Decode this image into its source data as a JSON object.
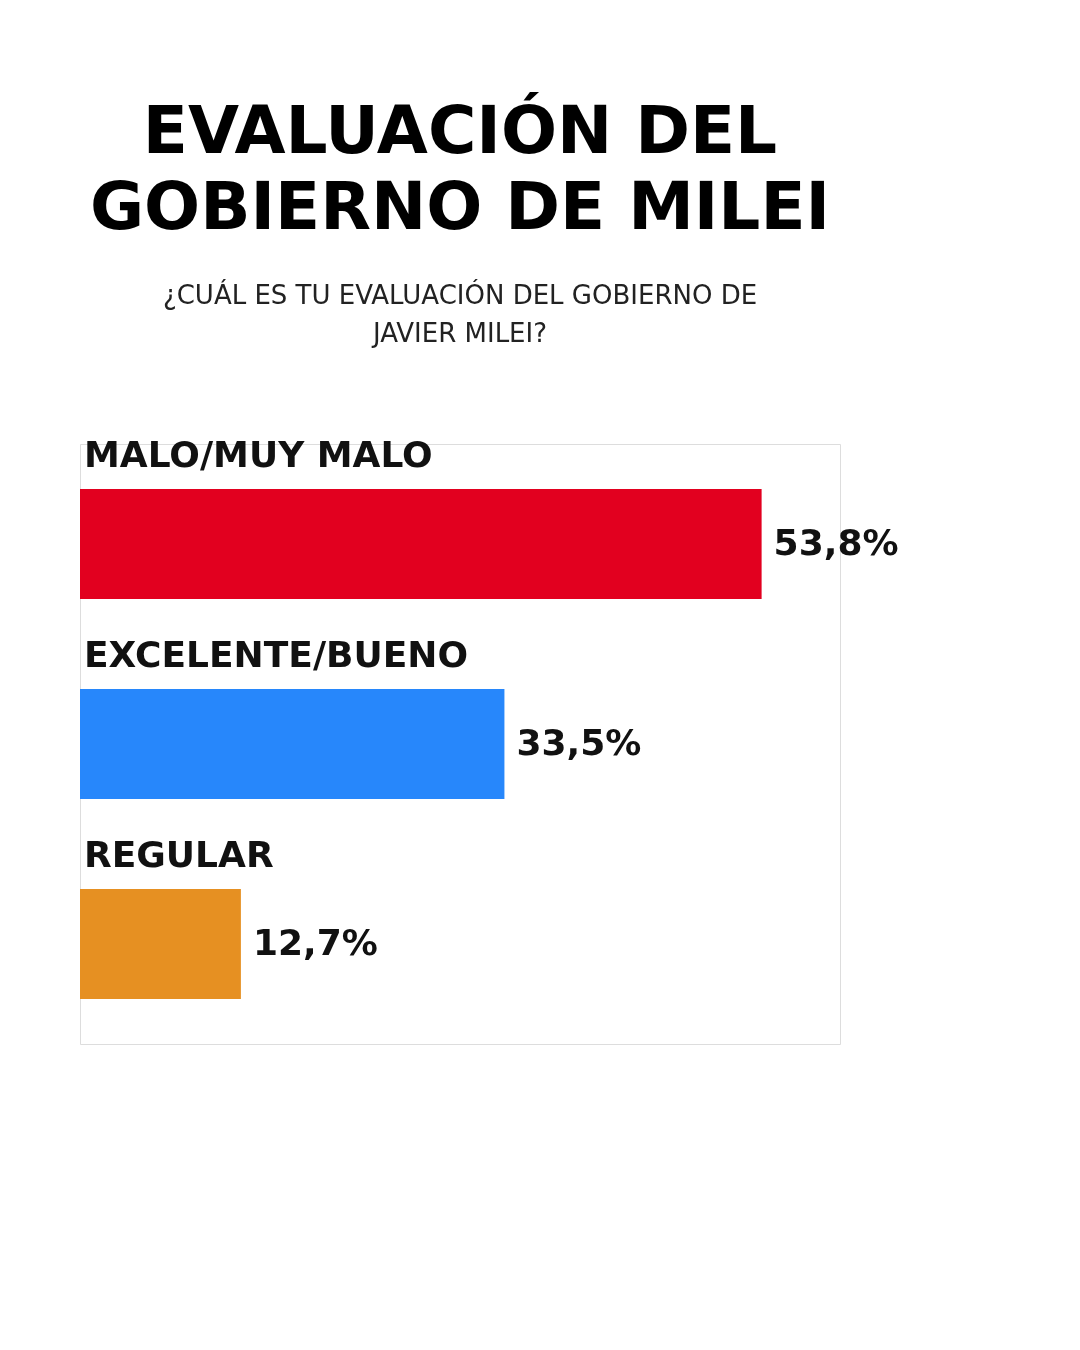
{
  "chart_data": {
    "type": "bar",
    "orientation": "horizontal",
    "title": "EVALUACIÓN DEL GOBIERNO DE MILEI",
    "subtitle": "¿CUÁL ES TU EVALUACIÓN DEL GOBIERNO DE JAVIER MILEI?",
    "categories": [
      "MALO/MUY MALO",
      "EXCELENTE/BUENO",
      "REGULAR"
    ],
    "values": [
      53.8,
      33.5,
      12.7
    ],
    "colors": [
      "#e2001f",
      "#2787fb",
      "#e69022"
    ],
    "value_labels": [
      "53,8%",
      "33,5%",
      "12,7%"
    ]
  }
}
